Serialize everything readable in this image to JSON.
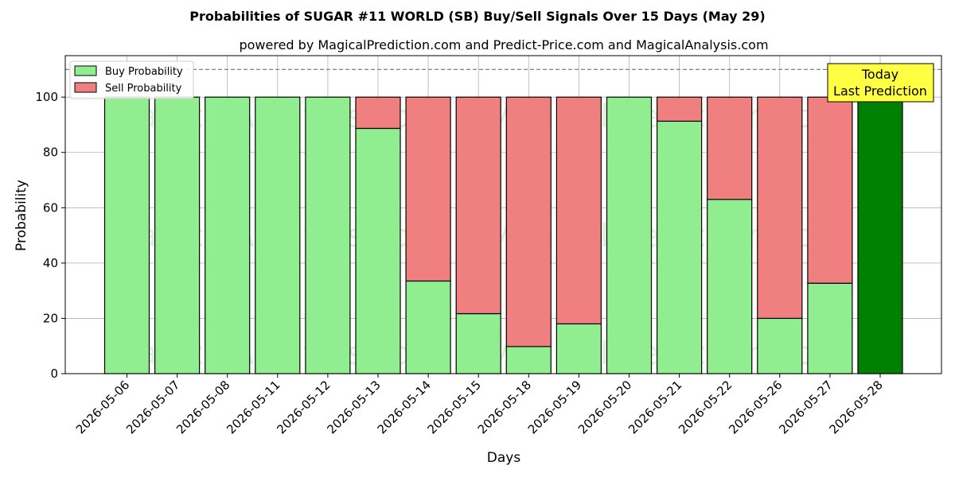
{
  "chart_data": {
    "type": "bar",
    "stacked": true,
    "title": "Probabilities of SUGAR #11 WORLD (SB) Buy/Sell Signals Over 15 Days (May 29)",
    "subtitle": "powered by MagicalPrediction.com and Predict-Price.com and MagicalAnalysis.com",
    "xlabel": "Days",
    "ylabel": "Probability",
    "ylim": [
      0,
      115
    ],
    "yticks": [
      0,
      20,
      40,
      60,
      80,
      100
    ],
    "reference_line": 110,
    "grid": true,
    "legend_position": "top-left",
    "categories": [
      "2026-05-06",
      "2026-05-07",
      "2026-05-08",
      "2026-05-11",
      "2026-05-12",
      "2026-05-13",
      "2026-05-14",
      "2026-05-15",
      "2026-05-18",
      "2026-05-19",
      "2026-05-20",
      "2026-05-21",
      "2026-05-22",
      "2026-05-26",
      "2026-05-27",
      "2026-05-28"
    ],
    "series": [
      {
        "name": "Buy Probability",
        "color": "#90ee90",
        "values": [
          100,
          100,
          100,
          100,
          100,
          88.7,
          33.5,
          21.7,
          9.8,
          18,
          100,
          91.3,
          63,
          20,
          32.7,
          100
        ]
      },
      {
        "name": "Sell Probability",
        "color": "#f08080",
        "values": [
          0,
          0,
          0,
          0,
          0,
          11.3,
          66.5,
          78.3,
          90.2,
          82,
          0,
          8.7,
          37,
          80,
          67.3,
          0
        ]
      }
    ],
    "highlight": {
      "index": 15,
      "color": "#008000",
      "label_line1": "Today",
      "label_line2": "Last Prediction",
      "label_bg": "#ffff44"
    },
    "watermarks": [
      "MagicalAnalysis.com",
      "MagicalPrediction.com"
    ]
  }
}
